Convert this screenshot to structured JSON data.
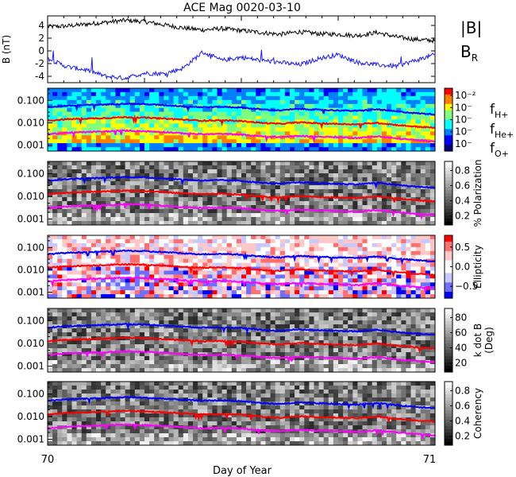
{
  "title": "ACE Mag 0020-03-10",
  "xlabel": "Day of Year",
  "x_ticks": [
    "70",
    "71"
  ],
  "xlim": [
    70,
    71
  ],
  "legend": {
    "B_mag": "|B|",
    "B_r": "B",
    "B_r_sub": "R",
    "f_h": "f",
    "f_h_sub": "H+",
    "f_he": "f",
    "f_he_sub": "He+",
    "f_o": "f",
    "f_o_sub": "O+"
  },
  "colors": {
    "B_mag": "#000000",
    "B_r": "#1a1aff",
    "f_h": "#0000ff",
    "f_he": "#ff0000",
    "f_o": "#ff00ff"
  },
  "chart_data": [
    {
      "type": "line",
      "ylabel": "B (nT)",
      "ylim": [
        -5,
        5.5
      ],
      "yticks": [
        "4",
        "2",
        "0",
        "-2",
        "-4"
      ],
      "series": [
        {
          "name": "|B|",
          "x": [
            70.0,
            70.05,
            70.1,
            70.15,
            70.2,
            70.25,
            70.3,
            70.35,
            70.4,
            70.45,
            70.5,
            70.55,
            70.6,
            70.65,
            70.7,
            70.75,
            70.8,
            70.85,
            70.9,
            70.95,
            71.0
          ],
          "values": [
            3.8,
            3.9,
            4.2,
            4.5,
            4.8,
            4.6,
            4.1,
            3.6,
            3.3,
            3.5,
            3.2,
            2.9,
            2.6,
            3.0,
            2.7,
            2.6,
            2.4,
            2.9,
            2.2,
            1.8,
            1.6
          ]
        },
        {
          "name": "B_R",
          "x": [
            70.0,
            70.05,
            70.1,
            70.15,
            70.2,
            70.25,
            70.3,
            70.35,
            70.4,
            70.45,
            70.5,
            70.55,
            70.6,
            70.65,
            70.7,
            70.75,
            70.8,
            70.85,
            70.9,
            70.95,
            71.0
          ],
          "values": [
            -1.2,
            -2.5,
            -3.0,
            -4.0,
            -4.3,
            -3.5,
            -3.6,
            -2.7,
            -0.2,
            -1.5,
            -1.0,
            -1.5,
            -1.8,
            -2.2,
            -1.2,
            -0.6,
            -1.8,
            -2.2,
            -2.4,
            -1.5,
            -0.6
          ]
        }
      ]
    },
    {
      "type": "heatmap",
      "name": "power",
      "colorbar_ticks": [
        "10⁻²",
        "10⁻",
        "10⁻",
        "10⁻",
        "10⁻"
      ],
      "yticks": [
        "0.100",
        "0.010",
        "0.001"
      ]
    },
    {
      "type": "heatmap",
      "name": "polarization",
      "colorbar_label": "% Polarization",
      "colorbar_ticks": [
        "0.8",
        "0.6",
        "0.4",
        "0.2"
      ],
      "yticks": [
        "0.100",
        "0.010",
        "0.001"
      ]
    },
    {
      "type": "heatmap",
      "name": "ellipticity",
      "colorbar_label": "Ellipticity",
      "colorbar_ticks": [
        "0.5",
        "0.0",
        "−0.5"
      ],
      "yticks": [
        "0.100",
        "0.010",
        "0.001"
      ]
    },
    {
      "type": "heatmap",
      "name": "kdotb",
      "colorbar_label": "k dot B (Deg)",
      "colorbar_label_1": "k dot B",
      "colorbar_label_2": "(Deg)",
      "colorbar_ticks": [
        "80",
        "60",
        "40",
        "20"
      ],
      "yticks": [
        "0.100",
        "0.010",
        "0.001"
      ]
    },
    {
      "type": "heatmap",
      "name": "coherency",
      "colorbar_label": "Coherency",
      "colorbar_ticks": [
        "0.8",
        "0.6",
        "0.4",
        "0.2"
      ],
      "yticks": [
        "0.100",
        "0.010",
        "0.001"
      ]
    }
  ],
  "gyro_lines": {
    "x": [
      70.0,
      70.05,
      70.1,
      70.15,
      70.2,
      70.25,
      70.3,
      70.35,
      70.4,
      70.45,
      70.5,
      70.55,
      70.6,
      70.65,
      70.7,
      70.75,
      70.8,
      70.85,
      70.9,
      70.95,
      71.0
    ],
    "f_h": [
      0.05,
      0.058,
      0.062,
      0.066,
      0.072,
      0.068,
      0.062,
      0.055,
      0.05,
      0.052,
      0.048,
      0.04,
      0.036,
      0.042,
      0.038,
      0.036,
      0.034,
      0.04,
      0.032,
      0.027,
      0.024
    ],
    "f_he": [
      0.0125,
      0.0145,
      0.0155,
      0.0165,
      0.018,
      0.017,
      0.0155,
      0.0138,
      0.0125,
      0.013,
      0.012,
      0.01,
      0.009,
      0.0105,
      0.0095,
      0.009,
      0.0085,
      0.01,
      0.008,
      0.0068,
      0.006
    ],
    "f_o": [
      0.0031,
      0.0036,
      0.0039,
      0.0041,
      0.0045,
      0.0042,
      0.0039,
      0.0034,
      0.0031,
      0.0032,
      0.003,
      0.0025,
      0.0023,
      0.0026,
      0.0024,
      0.0023,
      0.0021,
      0.0025,
      0.002,
      0.0017,
      0.0015
    ]
  }
}
